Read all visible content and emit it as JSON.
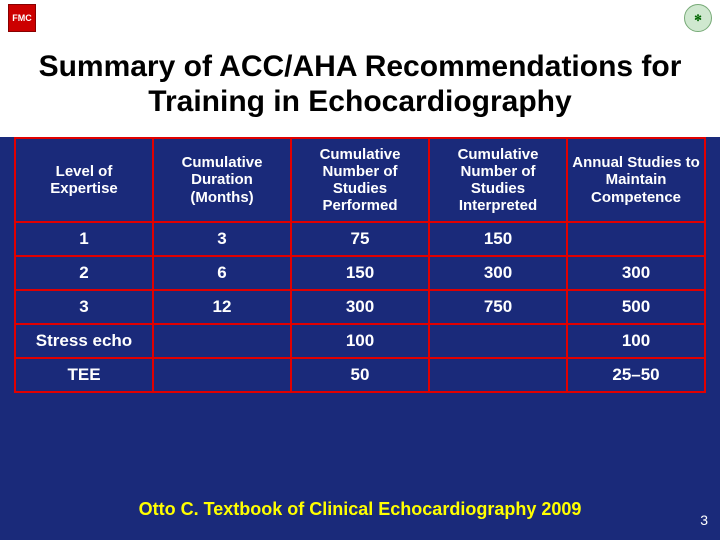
{
  "logos": {
    "left_label": "FMC",
    "right_label": "✻"
  },
  "title": "Summary of ACC/AHA Recommendations for Training in Echocardiography",
  "table": {
    "columns": [
      "Level of Expertise",
      "Cumulative Duration (Months)",
      "Cumulative Number of Studies Performed",
      "Cumulative Number of Studies Interpreted",
      "Annual Studies to Maintain Competence"
    ],
    "rows": [
      [
        "1",
        "3",
        "75",
        "150",
        ""
      ],
      [
        "2",
        "6",
        "150",
        "300",
        "300"
      ],
      [
        "3",
        "12",
        "300",
        "750",
        "500"
      ],
      [
        "Stress echo",
        "",
        "100",
        "",
        "100"
      ],
      [
        "TEE",
        "",
        "50",
        "",
        "25–50"
      ]
    ],
    "border_color": "#e00000",
    "text_color": "#ffffff",
    "header_fontsize": 15,
    "cell_fontsize": 17
  },
  "citation": "Otto C. Textbook of Clinical Echocardiography 2009",
  "page_number": "3",
  "colors": {
    "background": "#1a2a7a",
    "title_bg": "#ffffff",
    "title_fg": "#000000",
    "citation_fg": "#ffff00"
  }
}
